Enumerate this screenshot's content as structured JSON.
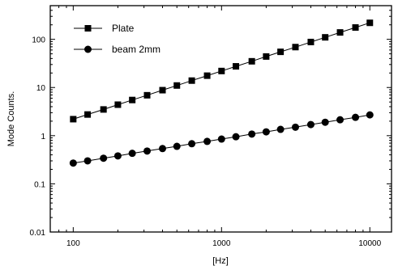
{
  "chart_data": {
    "type": "line",
    "title": "",
    "xlabel": "[Hz]",
    "ylabel": "Mode Counts.",
    "x_scale": "log",
    "y_scale": "log",
    "xlim": [
      70,
      14000
    ],
    "ylim": [
      0.01,
      500
    ],
    "x_ticks": [
      100,
      1000,
      10000
    ],
    "x_tick_labels": [
      "100",
      "1000",
      "10000"
    ],
    "y_ticks": [
      0.01,
      0.1,
      1,
      10,
      100
    ],
    "y_tick_labels": [
      "0.01",
      "0.1",
      "1",
      "10",
      "100"
    ],
    "grid": false,
    "legend_position": "top-left",
    "x": [
      100,
      125,
      160,
      200,
      250,
      315,
      400,
      500,
      630,
      800,
      1000,
      1250,
      1600,
      2000,
      2500,
      3150,
      4000,
      5000,
      6300,
      8000,
      10000
    ],
    "series": [
      {
        "name": "Plate",
        "marker": "square",
        "values": [
          2.2,
          2.75,
          3.5,
          4.4,
          5.5,
          6.9,
          8.8,
          11,
          13.9,
          17.6,
          22,
          27.5,
          35,
          44,
          55,
          69,
          88,
          110,
          139,
          176,
          220
        ]
      },
      {
        "name": "beam 2mm",
        "marker": "circle",
        "values": [
          0.27,
          0.3,
          0.34,
          0.38,
          0.43,
          0.48,
          0.54,
          0.6,
          0.68,
          0.76,
          0.85,
          0.95,
          1.08,
          1.2,
          1.35,
          1.5,
          1.7,
          1.9,
          2.14,
          2.4,
          2.7
        ]
      }
    ]
  }
}
